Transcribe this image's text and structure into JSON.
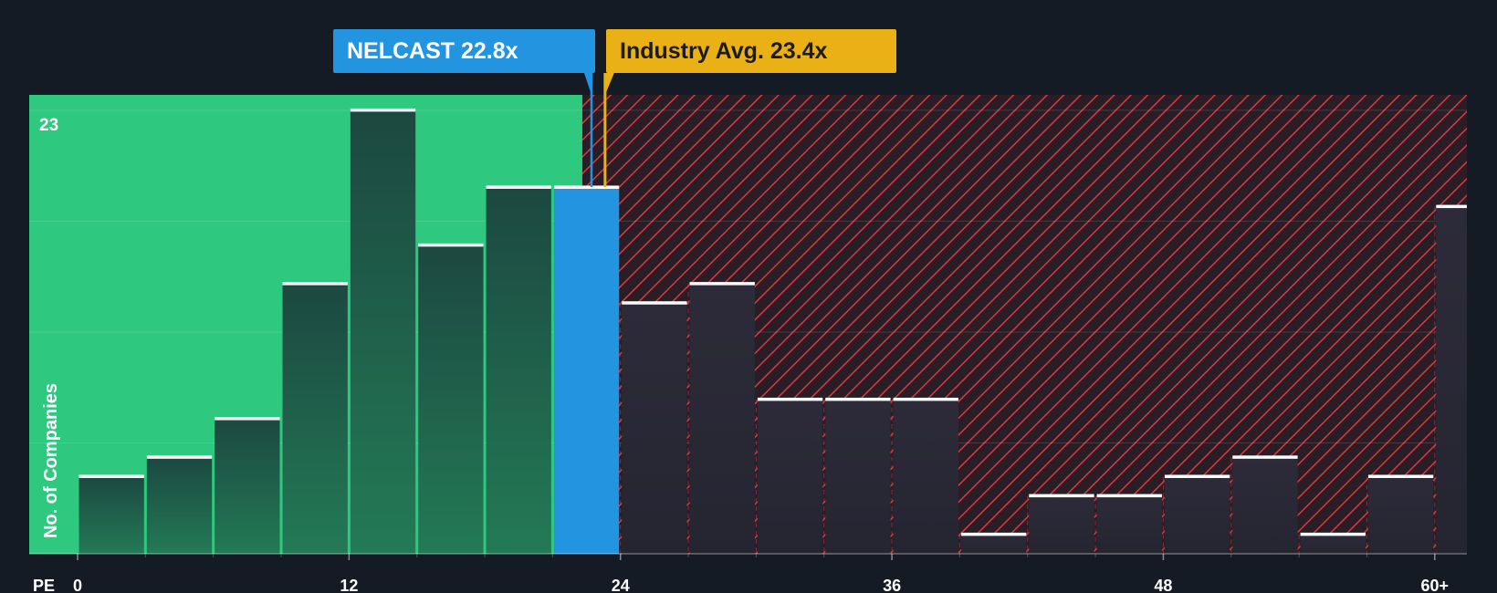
{
  "chart_data": {
    "type": "bar",
    "title": "",
    "xlabel": "PE",
    "ylabel": "No. of Companies",
    "bin_width": 3,
    "x_ticks": [
      {
        "value": 0,
        "label": "0"
      },
      {
        "value": 12,
        "label": "12"
      },
      {
        "value": 24,
        "label": "24"
      },
      {
        "value": 36,
        "label": "36"
      },
      {
        "value": 48,
        "label": "48"
      },
      {
        "value": 60,
        "label": "60+"
      }
    ],
    "y_max_label": "23",
    "ylim": [
      0,
      23.8
    ],
    "bins": [
      {
        "start": 0,
        "value": 4
      },
      {
        "start": 3,
        "value": 5
      },
      {
        "start": 6,
        "value": 7
      },
      {
        "start": 9,
        "value": 14
      },
      {
        "start": 12,
        "value": 23
      },
      {
        "start": 15,
        "value": 16
      },
      {
        "start": 18,
        "value": 19
      },
      {
        "start": 21,
        "value": 19,
        "highlight": true
      },
      {
        "start": 24,
        "value": 13
      },
      {
        "start": 27,
        "value": 14
      },
      {
        "start": 30,
        "value": 8
      },
      {
        "start": 33,
        "value": 8
      },
      {
        "start": 36,
        "value": 8
      },
      {
        "start": 39,
        "value": 1
      },
      {
        "start": 42,
        "value": 3
      },
      {
        "start": 45,
        "value": 3
      },
      {
        "start": 48,
        "value": 4
      },
      {
        "start": 51,
        "value": 5
      },
      {
        "start": 54,
        "value": 1
      },
      {
        "start": 57,
        "value": 4
      },
      {
        "start": 60,
        "value": 18
      }
    ],
    "fair_zone_end": 22.8,
    "company": {
      "name": "NELCAST",
      "value": 22.8,
      "label": "NELCAST 22.8x"
    },
    "industry": {
      "name": "Industry Avg.",
      "value": 23.4,
      "label": "Industry Avg. 23.4x"
    }
  },
  "colors": {
    "background": "#151b24",
    "green_zone": "#2ec97e",
    "bar_in_green": "#1e4d41",
    "highlight_bar": "#2394e0",
    "hatch_red": "#d83a3e",
    "hatch_bg": "#2a1d26",
    "bar_in_red": "#2b2c3a",
    "company_callout": "#2394e0",
    "industry_callout": "#eab116"
  }
}
